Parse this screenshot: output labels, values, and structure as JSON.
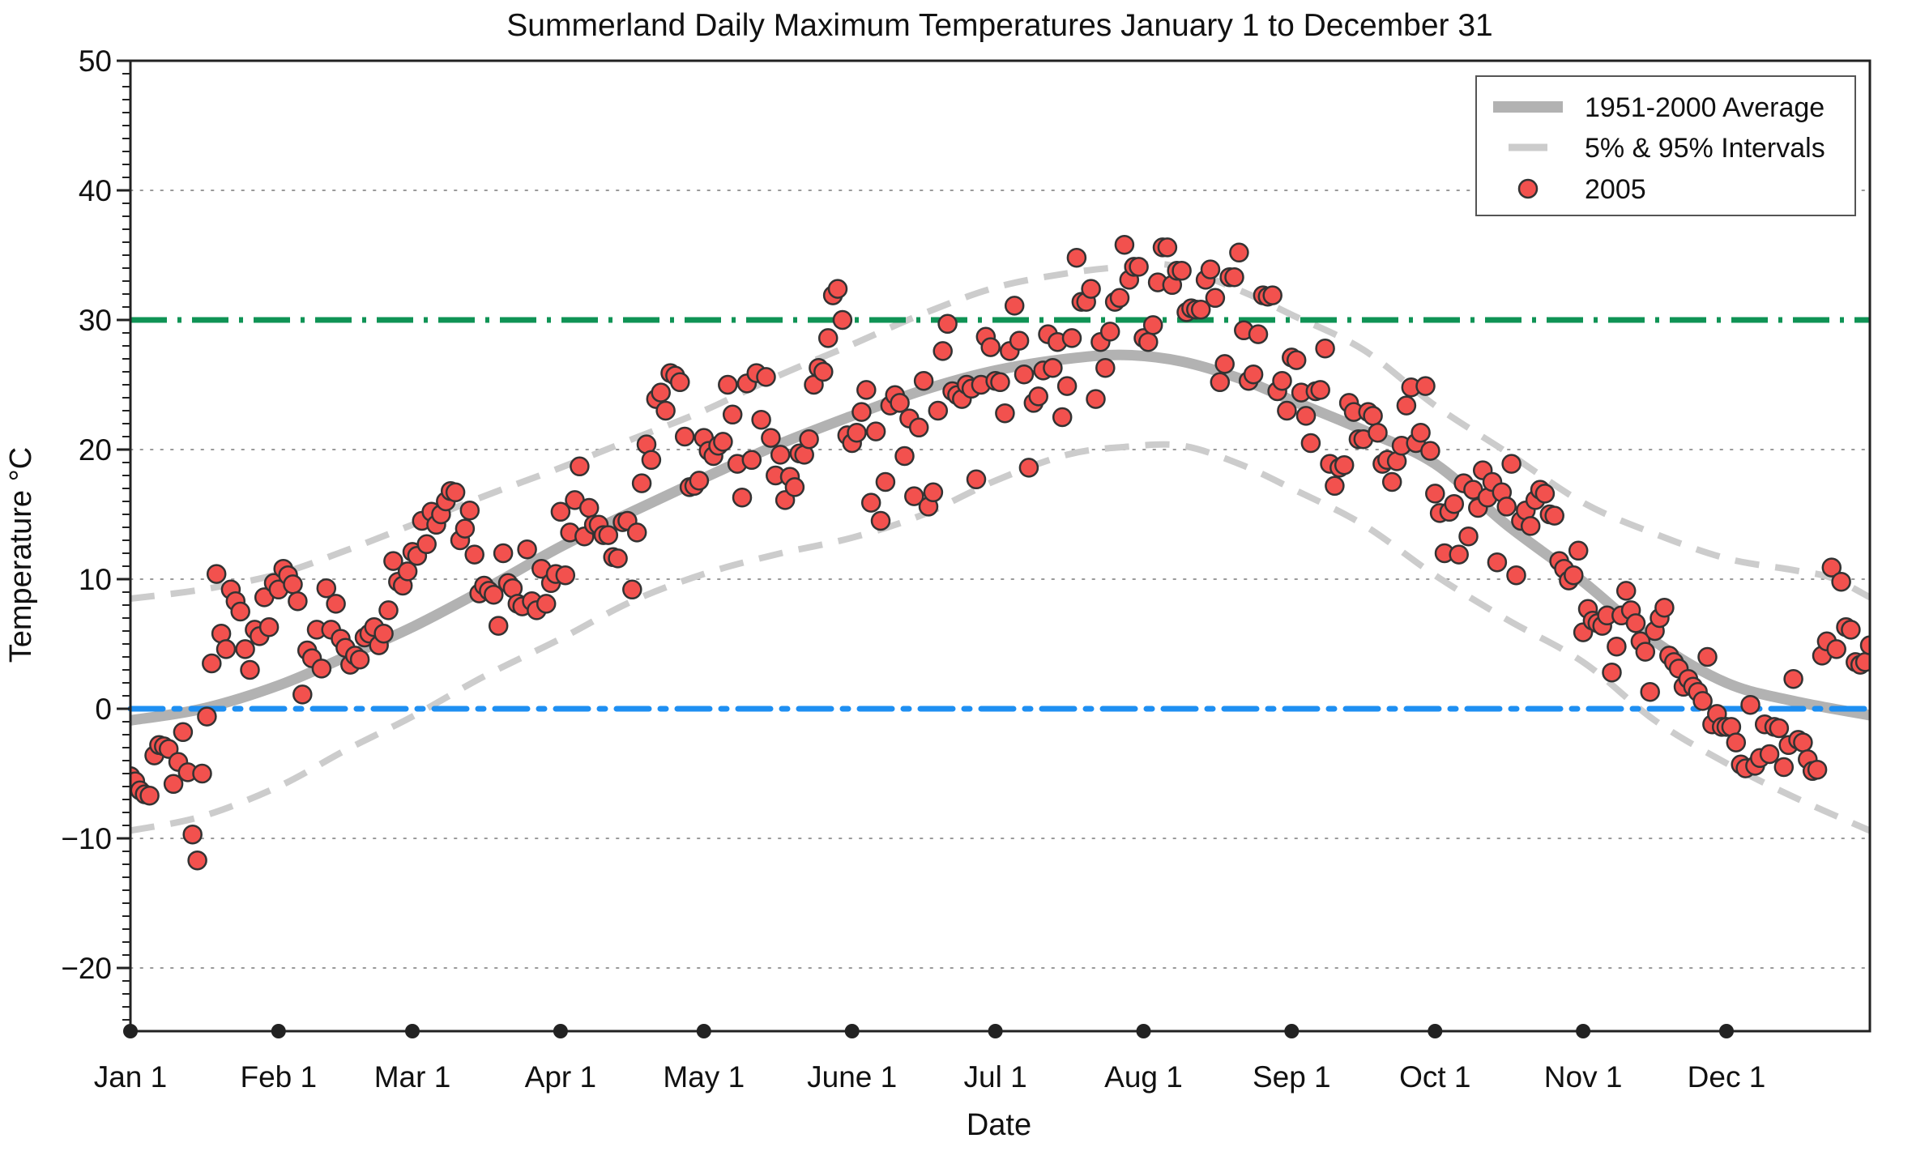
{
  "title": "Summerland Daily Maximum Temperatures January 1 to December 31",
  "axes": {
    "x_label": "Date",
    "y_label": "Temperature °C",
    "y_tick_labels": [
      "50",
      "40",
      "30",
      "20",
      "10",
      "0",
      "−10",
      "−20"
    ],
    "x_tick_labels": [
      "Jan 1",
      "Feb 1",
      "Mar 1",
      "Apr 1",
      "May 1",
      "June 1",
      "Jul 1",
      "Aug 1",
      "Sep 1",
      "Oct 1",
      "Nov 1",
      "Dec 1"
    ]
  },
  "legend": {
    "position": "upper-right",
    "items": [
      {
        "label": "1951-2000 Average",
        "marker": "thick-gray-line"
      },
      {
        "label": "5% & 95% Intervals",
        "marker": "gray-dash"
      },
      {
        "label": "2005",
        "marker": "red-dot"
      }
    ]
  },
  "colors": {
    "average_line": "#b2b2b2",
    "interval_line": "#cccccc",
    "observations": "#f2514e",
    "observation_edge": "#333333",
    "hot_reference": "#0f9355",
    "freezing_reference": "#1e8ff2",
    "grid": "#999999",
    "axis": "#222222",
    "text": "#111111",
    "legend_border": "#555555"
  },
  "chart_data": {
    "type": "scatter",
    "title": "Summerland Daily Maximum Temperatures January 1 to December 31",
    "xlabel": "Date",
    "ylabel": "Temperature °C",
    "x_unit": "day_of_year_2005",
    "xlim": [
      0,
      364
    ],
    "ylim": [
      -25,
      50
    ],
    "grid": "horizontal-dotted",
    "legend_position": "upper right",
    "y_major_ticks": [
      50,
      40,
      30,
      20,
      10,
      0,
      -10,
      -20
    ],
    "grid_y_values": [
      40,
      20,
      10,
      -10,
      -20
    ],
    "month_tick_days": [
      0,
      31,
      59,
      90,
      120,
      151,
      181,
      212,
      243,
      273,
      304,
      334
    ],
    "reference_lines": [
      {
        "name": "30 °C line",
        "y": 30,
        "style": "dash-dot",
        "color_key": "hot_reference"
      },
      {
        "name": "0 °C freezing line",
        "y": 0,
        "style": "dash-dot",
        "color_key": "freezing_reference"
      }
    ],
    "series": [
      {
        "name": "1951-2000 Average",
        "type": "line",
        "points": [
          [
            0,
            -0.9
          ],
          [
            15,
            0.0
          ],
          [
            31,
            1.8
          ],
          [
            45,
            4.0
          ],
          [
            59,
            6.3
          ],
          [
            74,
            9.2
          ],
          [
            90,
            12.5
          ],
          [
            105,
            15.2
          ],
          [
            120,
            17.8
          ],
          [
            135,
            20.3
          ],
          [
            151,
            22.6
          ],
          [
            166,
            24.6
          ],
          [
            181,
            26.1
          ],
          [
            196,
            27.0
          ],
          [
            208,
            27.3
          ],
          [
            220,
            26.8
          ],
          [
            232,
            25.5
          ],
          [
            243,
            23.8
          ],
          [
            258,
            21.5
          ],
          [
            273,
            18.9
          ],
          [
            288,
            14.2
          ],
          [
            304,
            9.8
          ],
          [
            319,
            5.2
          ],
          [
            334,
            2.0
          ],
          [
            348,
            0.6
          ],
          [
            364,
            -0.5
          ]
        ]
      },
      {
        "name": "95% Interval",
        "type": "dashed-line",
        "points": [
          [
            0,
            8.5
          ],
          [
            15,
            9.2
          ],
          [
            31,
            10.4
          ],
          [
            45,
            12.2
          ],
          [
            59,
            14.2
          ],
          [
            74,
            16.4
          ],
          [
            90,
            18.6
          ],
          [
            105,
            20.8
          ],
          [
            120,
            23.0
          ],
          [
            135,
            25.6
          ],
          [
            151,
            28.1
          ],
          [
            166,
            30.5
          ],
          [
            181,
            32.5
          ],
          [
            196,
            33.6
          ],
          [
            208,
            34.1
          ],
          [
            218,
            34.2
          ],
          [
            232,
            32.3
          ],
          [
            243,
            30.4
          ],
          [
            258,
            27.7
          ],
          [
            273,
            23.4
          ],
          [
            288,
            19.8
          ],
          [
            304,
            15.9
          ],
          [
            319,
            13.5
          ],
          [
            334,
            11.6
          ],
          [
            348,
            10.7
          ],
          [
            356,
            10.1
          ],
          [
            364,
            8.6
          ]
        ]
      },
      {
        "name": "5% Interval",
        "type": "dashed-line",
        "points": [
          [
            0,
            -9.4
          ],
          [
            15,
            -8.3
          ],
          [
            31,
            -6.0
          ],
          [
            45,
            -3.2
          ],
          [
            59,
            -0.6
          ],
          [
            74,
            2.5
          ],
          [
            90,
            5.4
          ],
          [
            105,
            8.3
          ],
          [
            120,
            10.4
          ],
          [
            135,
            11.9
          ],
          [
            151,
            13.2
          ],
          [
            166,
            15.0
          ],
          [
            181,
            17.6
          ],
          [
            196,
            19.6
          ],
          [
            208,
            20.2
          ],
          [
            220,
            20.3
          ],
          [
            232,
            18.9
          ],
          [
            243,
            17.0
          ],
          [
            258,
            14.2
          ],
          [
            273,
            10.3
          ],
          [
            288,
            6.9
          ],
          [
            304,
            3.6
          ],
          [
            319,
            -0.9
          ],
          [
            334,
            -4.2
          ],
          [
            348,
            -6.8
          ],
          [
            364,
            -9.4
          ]
        ]
      },
      {
        "name": "2005",
        "type": "scatter",
        "day_start": 0,
        "daily_values": [
          -5.2,
          -5.6,
          -6.3,
          -6.6,
          -6.7,
          -3.6,
          -2.8,
          -2.9,
          -3.1,
          -5.8,
          -4.1,
          -1.8,
          -4.9,
          -9.7,
          -11.7,
          -5.0,
          -0.6,
          3.5,
          10.4,
          5.8,
          4.6,
          9.2,
          8.3,
          7.5,
          4.6,
          3.0,
          6.1,
          5.6,
          8.6,
          6.3,
          9.7,
          9.2,
          10.8,
          10.3,
          9.6,
          8.3,
          1.1,
          4.5,
          3.9,
          6.1,
          3.1,
          9.3,
          6.1,
          8.1,
          5.4,
          4.7,
          3.4,
          4.1,
          3.8,
          5.5,
          5.8,
          6.3,
          4.9,
          5.8,
          7.6,
          11.4,
          9.8,
          9.5,
          10.6,
          12.1,
          11.8,
          14.5,
          12.7,
          15.2,
          14.2,
          15.0,
          16.0,
          16.8,
          16.7,
          13.0,
          13.9,
          15.3,
          11.9,
          8.9,
          9.5,
          9.1,
          8.8,
          6.4,
          12.0,
          9.7,
          9.3,
          8.1,
          7.9,
          12.3,
          8.3,
          7.6,
          10.8,
          8.1,
          9.7,
          10.4,
          15.2,
          10.3,
          13.6,
          16.1,
          18.7,
          13.3,
          15.5,
          14.2,
          14.2,
          13.4,
          13.4,
          11.7,
          11.6,
          14.4,
          14.5,
          9.2,
          13.6,
          17.4,
          20.4,
          19.2,
          23.9,
          24.4,
          23.0,
          25.9,
          25.7,
          25.2,
          21.0,
          17.1,
          17.2,
          17.6,
          20.9,
          19.9,
          19.5,
          20.3,
          20.6,
          25.0,
          22.7,
          18.9,
          16.3,
          25.1,
          19.2,
          25.9,
          22.3,
          25.6,
          20.9,
          18.0,
          19.6,
          16.1,
          17.9,
          17.1,
          19.7,
          19.6,
          20.8,
          25.0,
          26.3,
          26.0,
          28.6,
          31.9,
          32.4,
          30.0,
          21.1,
          20.5,
          21.3,
          22.9,
          24.6,
          15.9,
          21.4,
          14.5,
          17.5,
          23.4,
          24.2,
          23.6,
          19.5,
          22.4,
          16.4,
          21.7,
          25.3,
          15.6,
          16.7,
          23.0,
          27.6,
          29.7,
          24.5,
          24.2,
          23.9,
          25.0,
          24.7,
          17.7,
          25.0,
          28.7,
          27.9,
          25.3,
          25.2,
          22.8,
          27.6,
          31.1,
          28.4,
          25.8,
          18.6,
          23.6,
          24.1,
          26.1,
          28.9,
          26.3,
          28.3,
          22.5,
          24.9,
          28.6,
          34.8,
          31.4,
          31.4,
          32.4,
          23.9,
          28.3,
          26.3,
          29.1,
          31.4,
          31.7,
          35.8,
          33.1,
          34.1,
          34.1,
          28.6,
          28.3,
          29.6,
          32.9,
          35.6,
          35.6,
          32.7,
          33.8,
          33.8,
          30.6,
          30.9,
          30.8,
          30.8,
          33.1,
          33.9,
          31.7,
          25.2,
          26.6,
          33.3,
          33.3,
          35.2,
          29.2,
          25.3,
          25.8,
          28.9,
          31.9,
          31.8,
          31.9,
          24.5,
          25.3,
          23.0,
          27.1,
          26.9,
          24.4,
          22.6,
          20.5,
          24.5,
          24.6,
          27.8,
          18.9,
          17.2,
          18.6,
          18.8,
          23.6,
          22.9,
          20.8,
          20.8,
          22.9,
          22.6,
          21.3,
          18.9,
          19.2,
          17.5,
          19.1,
          20.3,
          23.4,
          24.8,
          20.5,
          21.3,
          24.9,
          19.9,
          16.6,
          15.1,
          12.0,
          15.2,
          15.8,
          11.9,
          17.4,
          13.3,
          16.9,
          15.5,
          18.4,
          16.3,
          17.5,
          11.3,
          16.7,
          15.6,
          18.9,
          10.3,
          14.5,
          15.3,
          14.1,
          16.1,
          16.9,
          16.6,
          15.0,
          14.9,
          11.4,
          10.8,
          9.9,
          10.3,
          12.2,
          5.9,
          7.7,
          6.8,
          6.6,
          6.4,
          7.2,
          2.8,
          4.8,
          7.2,
          9.1,
          7.6,
          6.6,
          5.2,
          4.4,
          1.3,
          6.0,
          7.0,
          7.8,
          4.1,
          3.6,
          3.1,
          1.7,
          2.3,
          1.7,
          1.3,
          0.6,
          4.0,
          -1.2,
          -0.4,
          -1.4,
          -1.4,
          -1.4,
          -2.6,
          -4.3,
          -4.6,
          0.3,
          -4.4,
          -3.8,
          -1.2,
          -3.5,
          -1.4,
          -1.5,
          -4.5,
          -2.8,
          2.3,
          -2.4,
          -2.6,
          -3.9,
          -4.8,
          -4.7,
          4.1,
          5.2,
          10.9,
          4.6,
          9.8,
          6.3,
          6.1,
          3.6,
          3.4,
          3.6,
          4.9
        ]
      }
    ]
  }
}
